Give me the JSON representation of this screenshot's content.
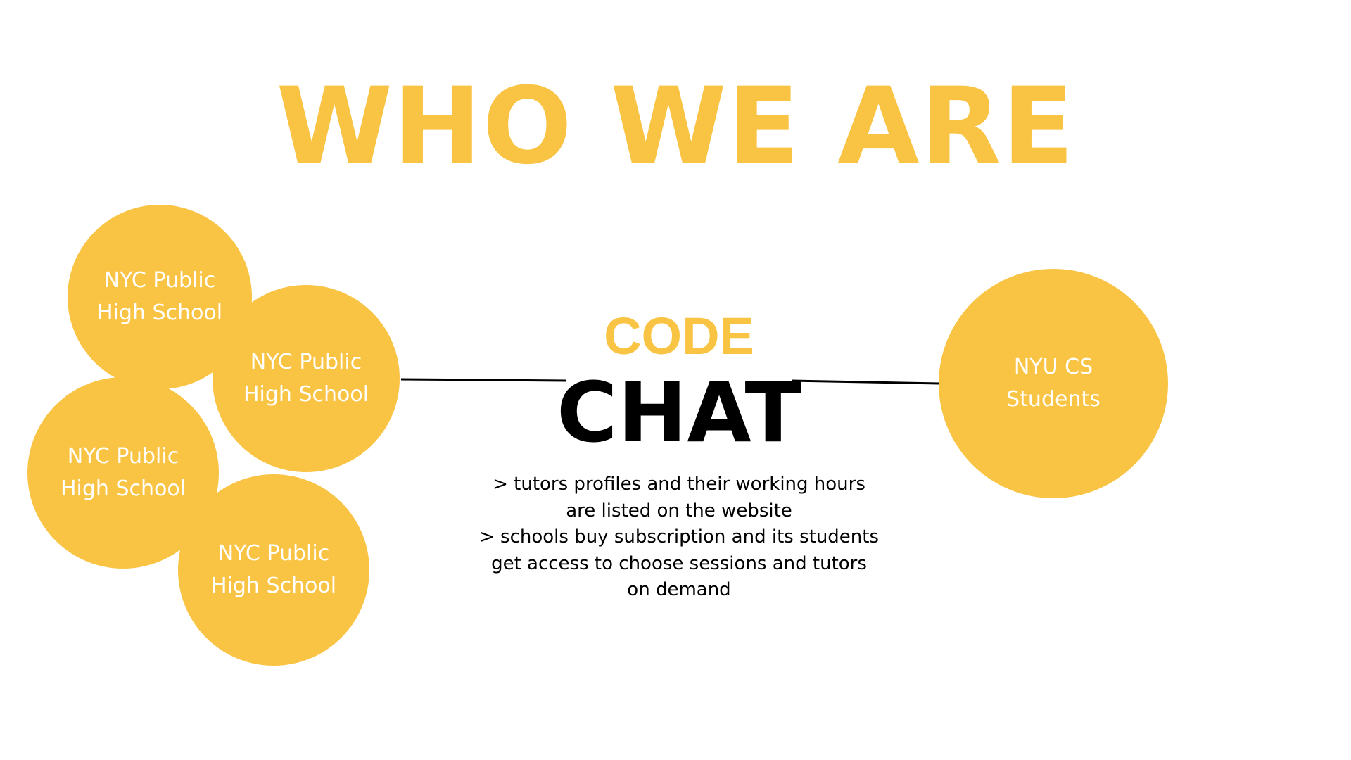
{
  "title": "WHO WE ARE",
  "colors": {
    "accent": "#F9C444",
    "circle_text": "#FFFFFF",
    "brand_text": "#000000",
    "background": "#FFFFFF"
  },
  "left_nodes": [
    {
      "label": "NYC Public\nHigh School"
    },
    {
      "label": "NYC Public\nHigh School"
    },
    {
      "label": "NYC Public\nHigh School"
    },
    {
      "label": "NYC Public\nHigh School"
    }
  ],
  "right_node": {
    "label": "NYU CS\nStudents"
  },
  "center": {
    "brand_top": "CODE",
    "brand_bottom": "CHAT",
    "description": [
      "> tutors profiles and their working hours",
      "are listed on the website",
      "> schools buy subscription and its students",
      "get access to choose  sessions and tutors",
      "on demand"
    ]
  }
}
